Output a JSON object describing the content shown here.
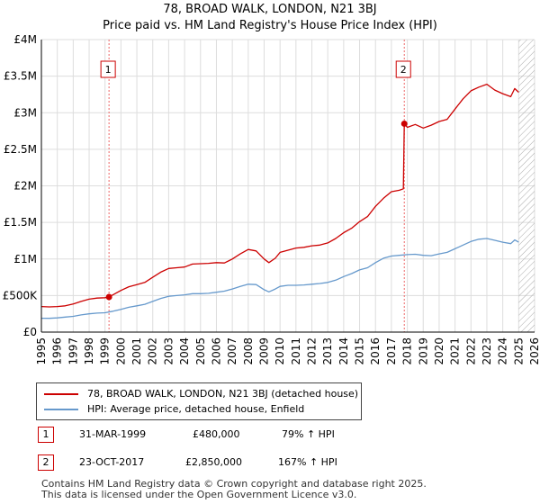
{
  "title_line1": "78, BROAD WALK, LONDON, N21 3BJ",
  "title_line2": "Price paid vs. HM Land Registry's House Price Index (HPI)",
  "colors": {
    "property": "#cc0000",
    "hpi": "#6699cc",
    "grid": "#dddddd",
    "marker_line": "#ee6666",
    "hatch": "#aaaaaa"
  },
  "chart_data": {
    "type": "line",
    "title": "78, BROAD WALK, LONDON, N21 3BJ",
    "subtitle": "Price paid vs. HM Land Registry's House Price Index (HPI)",
    "xlabel": "",
    "ylabel": "",
    "xlim": [
      1995,
      2026
    ],
    "ylim": [
      0,
      4000000
    ],
    "grid": true,
    "x_ticks": [
      "1995",
      "1996",
      "1997",
      "1998",
      "1999",
      "2000",
      "2001",
      "2002",
      "2003",
      "2004",
      "2005",
      "2006",
      "2007",
      "2008",
      "2009",
      "2010",
      "2011",
      "2012",
      "2013",
      "2014",
      "2015",
      "2016",
      "2017",
      "2018",
      "2019",
      "2020",
      "2021",
      "2022",
      "2023",
      "2024",
      "2025",
      "2026"
    ],
    "y_ticks": [
      {
        "value": 0,
        "label": "£0"
      },
      {
        "value": 500000,
        "label": "£500K"
      },
      {
        "value": 1000000,
        "label": "£1M"
      },
      {
        "value": 1500000,
        "label": "£1.5M"
      },
      {
        "value": 2000000,
        "label": "£2M"
      },
      {
        "value": 2500000,
        "label": "£2.5M"
      },
      {
        "value": 3000000,
        "label": "£3M"
      },
      {
        "value": 3500000,
        "label": "£3.5M"
      },
      {
        "value": 4000000,
        "label": "£4M"
      }
    ],
    "future_hatch_from": 2025.0,
    "series": [
      {
        "name": "78, BROAD WALK, LONDON, N21 3BJ (detached house)",
        "color": "#cc0000",
        "points": [
          [
            1995.0,
            350000
          ],
          [
            1995.5,
            345000
          ],
          [
            1996.0,
            350000
          ],
          [
            1996.5,
            360000
          ],
          [
            1997.0,
            385000
          ],
          [
            1997.5,
            420000
          ],
          [
            1998.0,
            450000
          ],
          [
            1998.5,
            465000
          ],
          [
            1999.0,
            470000
          ],
          [
            1999.25,
            480000
          ],
          [
            1999.5,
            510000
          ],
          [
            2000.0,
            570000
          ],
          [
            2000.5,
            620000
          ],
          [
            2001.0,
            650000
          ],
          [
            2001.5,
            680000
          ],
          [
            2002.0,
            750000
          ],
          [
            2002.5,
            820000
          ],
          [
            2003.0,
            870000
          ],
          [
            2003.5,
            880000
          ],
          [
            2004.0,
            890000
          ],
          [
            2004.5,
            930000
          ],
          [
            2005.0,
            935000
          ],
          [
            2005.5,
            940000
          ],
          [
            2006.0,
            950000
          ],
          [
            2006.5,
            945000
          ],
          [
            2007.0,
            1000000
          ],
          [
            2007.5,
            1070000
          ],
          [
            2008.0,
            1130000
          ],
          [
            2008.5,
            1110000
          ],
          [
            2009.0,
            1000000
          ],
          [
            2009.3,
            950000
          ],
          [
            2009.7,
            1010000
          ],
          [
            2010.0,
            1090000
          ],
          [
            2010.5,
            1120000
          ],
          [
            2011.0,
            1150000
          ],
          [
            2011.5,
            1160000
          ],
          [
            2012.0,
            1180000
          ],
          [
            2012.5,
            1190000
          ],
          [
            2013.0,
            1220000
          ],
          [
            2013.5,
            1280000
          ],
          [
            2014.0,
            1360000
          ],
          [
            2014.5,
            1420000
          ],
          [
            2015.0,
            1510000
          ],
          [
            2015.5,
            1580000
          ],
          [
            2016.0,
            1720000
          ],
          [
            2016.5,
            1830000
          ],
          [
            2017.0,
            1920000
          ],
          [
            2017.5,
            1940000
          ],
          [
            2017.75,
            1960000
          ],
          [
            2017.81,
            2850000
          ],
          [
            2018.0,
            2800000
          ],
          [
            2018.5,
            2840000
          ],
          [
            2019.0,
            2790000
          ],
          [
            2019.5,
            2830000
          ],
          [
            2020.0,
            2880000
          ],
          [
            2020.5,
            2910000
          ],
          [
            2021.0,
            3050000
          ],
          [
            2021.5,
            3190000
          ],
          [
            2022.0,
            3300000
          ],
          [
            2022.5,
            3350000
          ],
          [
            2023.0,
            3390000
          ],
          [
            2023.5,
            3310000
          ],
          [
            2024.0,
            3260000
          ],
          [
            2024.5,
            3220000
          ],
          [
            2024.75,
            3330000
          ],
          [
            2025.0,
            3280000
          ]
        ]
      },
      {
        "name": "HPI: Average price, detached house, Enfield",
        "color": "#6699cc",
        "points": [
          [
            1995.0,
            190000
          ],
          [
            1995.5,
            188000
          ],
          [
            1996.0,
            195000
          ],
          [
            1996.5,
            205000
          ],
          [
            1997.0,
            215000
          ],
          [
            1997.5,
            235000
          ],
          [
            1998.0,
            250000
          ],
          [
            1998.5,
            260000
          ],
          [
            1999.0,
            265000
          ],
          [
            1999.5,
            285000
          ],
          [
            2000.0,
            310000
          ],
          [
            2000.5,
            340000
          ],
          [
            2001.0,
            360000
          ],
          [
            2001.5,
            380000
          ],
          [
            2002.0,
            420000
          ],
          [
            2002.5,
            460000
          ],
          [
            2003.0,
            490000
          ],
          [
            2003.5,
            500000
          ],
          [
            2004.0,
            510000
          ],
          [
            2004.5,
            525000
          ],
          [
            2005.0,
            525000
          ],
          [
            2005.5,
            530000
          ],
          [
            2006.0,
            545000
          ],
          [
            2006.5,
            560000
          ],
          [
            2007.0,
            590000
          ],
          [
            2007.5,
            625000
          ],
          [
            2008.0,
            655000
          ],
          [
            2008.5,
            650000
          ],
          [
            2009.0,
            580000
          ],
          [
            2009.3,
            550000
          ],
          [
            2009.7,
            590000
          ],
          [
            2010.0,
            625000
          ],
          [
            2010.5,
            640000
          ],
          [
            2011.0,
            640000
          ],
          [
            2011.5,
            645000
          ],
          [
            2012.0,
            655000
          ],
          [
            2012.5,
            665000
          ],
          [
            2013.0,
            680000
          ],
          [
            2013.5,
            710000
          ],
          [
            2014.0,
            760000
          ],
          [
            2014.5,
            800000
          ],
          [
            2015.0,
            850000
          ],
          [
            2015.5,
            880000
          ],
          [
            2016.0,
            950000
          ],
          [
            2016.5,
            1010000
          ],
          [
            2017.0,
            1040000
          ],
          [
            2017.5,
            1050000
          ],
          [
            2018.0,
            1060000
          ],
          [
            2018.5,
            1065000
          ],
          [
            2019.0,
            1050000
          ],
          [
            2019.5,
            1045000
          ],
          [
            2020.0,
            1070000
          ],
          [
            2020.5,
            1090000
          ],
          [
            2021.0,
            1140000
          ],
          [
            2021.5,
            1190000
          ],
          [
            2022.0,
            1240000
          ],
          [
            2022.5,
            1270000
          ],
          [
            2023.0,
            1280000
          ],
          [
            2023.5,
            1255000
          ],
          [
            2024.0,
            1230000
          ],
          [
            2024.5,
            1210000
          ],
          [
            2024.75,
            1260000
          ],
          [
            2025.0,
            1230000
          ]
        ]
      }
    ],
    "annotations": [
      {
        "label": "1",
        "x": 1999.25,
        "y": 480000
      },
      {
        "label": "2",
        "x": 2017.81,
        "y": 2850000
      }
    ]
  },
  "legend": {
    "property_label": "78, BROAD WALK, LONDON, N21 3BJ (detached house)",
    "hpi_label": "HPI: Average price, detached house, Enfield"
  },
  "transactions": [
    {
      "num": "1",
      "date": "31-MAR-1999",
      "price": "£480,000",
      "hpi_change": "79% ↑ HPI"
    },
    {
      "num": "2",
      "date": "23-OCT-2017",
      "price": "£2,850,000",
      "hpi_change": "167% ↑ HPI"
    }
  ],
  "footer": {
    "line1": "Contains HM Land Registry data © Crown copyright and database right 2025.",
    "line2": "This data is licensed under the Open Government Licence v3.0."
  }
}
